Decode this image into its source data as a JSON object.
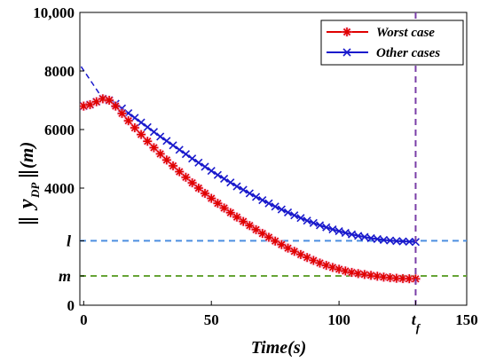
{
  "chart_data": {
    "type": "line",
    "xlabel": "Time(s)",
    "ylabel": {
      "main": "y",
      "sub": "DP",
      "unit": "(m)"
    },
    "xlim": [
      -1.5,
      150
    ],
    "ylim": [
      0,
      10000
    ],
    "x_ticks": [
      {
        "value": 0,
        "label": "0"
      },
      {
        "value": 50,
        "label": "50"
      },
      {
        "value": 100,
        "label": "100"
      },
      {
        "value": 150,
        "label": "150"
      }
    ],
    "tf_tick": {
      "value": 130,
      "label": "t",
      "sub": "f"
    },
    "y_ticks": [
      {
        "value": 0,
        "label": "0"
      },
      {
        "value": 4000,
        "label": "4000"
      },
      {
        "value": 6000,
        "label": "6000"
      },
      {
        "value": 8000,
        "label": "8000"
      },
      {
        "value": 10000,
        "label": "10,000"
      }
    ],
    "y_letter_ticks": [
      {
        "value": 2200,
        "label": "l"
      },
      {
        "value": 1000,
        "label": "m"
      }
    ],
    "reference_lines": [
      {
        "y": 2200,
        "color": "#4c8fe0"
      },
      {
        "y": 1000,
        "color": "#66a436"
      }
    ],
    "vertical_line": {
      "x": 130,
      "color": "#7a3ea8"
    },
    "legend": {
      "position": "top-right"
    },
    "series": [
      {
        "name": "Worst case",
        "color": "#e00000",
        "marker": "asterisk",
        "x": [
          0,
          2.5,
          5,
          7.5,
          10,
          12.5,
          15,
          17.5,
          20,
          22.5,
          25,
          27.5,
          30,
          32.5,
          35,
          37.5,
          40,
          42.5,
          45,
          47.5,
          50,
          52.5,
          55,
          57.5,
          60,
          62.5,
          65,
          67.5,
          70,
          72.5,
          75,
          77.5,
          80,
          82.5,
          85,
          87.5,
          90,
          92.5,
          95,
          97.5,
          100,
          102.5,
          105,
          107.5,
          110,
          112.5,
          115,
          117.5,
          120,
          122.5,
          125,
          127.5,
          130
        ],
        "y": [
          6800,
          6850,
          6950,
          7050,
          7000,
          6800,
          6550,
          6300,
          6060,
          5830,
          5600,
          5380,
          5170,
          4960,
          4760,
          4560,
          4370,
          4180,
          4000,
          3820,
          3650,
          3480,
          3320,
          3160,
          3010,
          2860,
          2720,
          2580,
          2450,
          2320,
          2190,
          2070,
          1950,
          1840,
          1730,
          1630,
          1530,
          1440,
          1360,
          1290,
          1230,
          1170,
          1120,
          1080,
          1050,
          1020,
          990,
          960,
          940,
          920,
          910,
          905,
          900
        ]
      },
      {
        "name": "Other cases",
        "color": "#1a1acc",
        "marker": "x",
        "x": [
          0,
          2.5,
          5,
          7.5,
          10,
          12.5,
          15,
          17.5,
          20,
          22.5,
          25,
          27.5,
          30,
          32.5,
          35,
          37.5,
          40,
          42.5,
          45,
          47.5,
          50,
          52.5,
          55,
          57.5,
          60,
          62.5,
          65,
          67.5,
          70,
          72.5,
          75,
          77.5,
          80,
          82.5,
          85,
          87.5,
          90,
          92.5,
          95,
          97.5,
          100,
          102.5,
          105,
          107.5,
          110,
          112.5,
          115,
          117.5,
          120,
          122.5,
          125,
          127.5,
          130
        ],
        "y": [
          6800,
          6850,
          6950,
          7050,
          7000,
          6880,
          6720,
          6560,
          6400,
          6240,
          6080,
          5920,
          5760,
          5610,
          5460,
          5310,
          5160,
          5010,
          4870,
          4730,
          4590,
          4450,
          4320,
          4190,
          4060,
          3940,
          3820,
          3700,
          3590,
          3480,
          3370,
          3270,
          3170,
          3070,
          2980,
          2890,
          2810,
          2730,
          2660,
          2590,
          2530,
          2470,
          2420,
          2370,
          2330,
          2290,
          2260,
          2230,
          2210,
          2190,
          2180,
          2170,
          2160
        ]
      }
    ],
    "initial_dashed_segment": {
      "color": "#1a1acc",
      "x": [
        -1,
        7.5
      ],
      "y": [
        8150,
        7050
      ]
    }
  }
}
